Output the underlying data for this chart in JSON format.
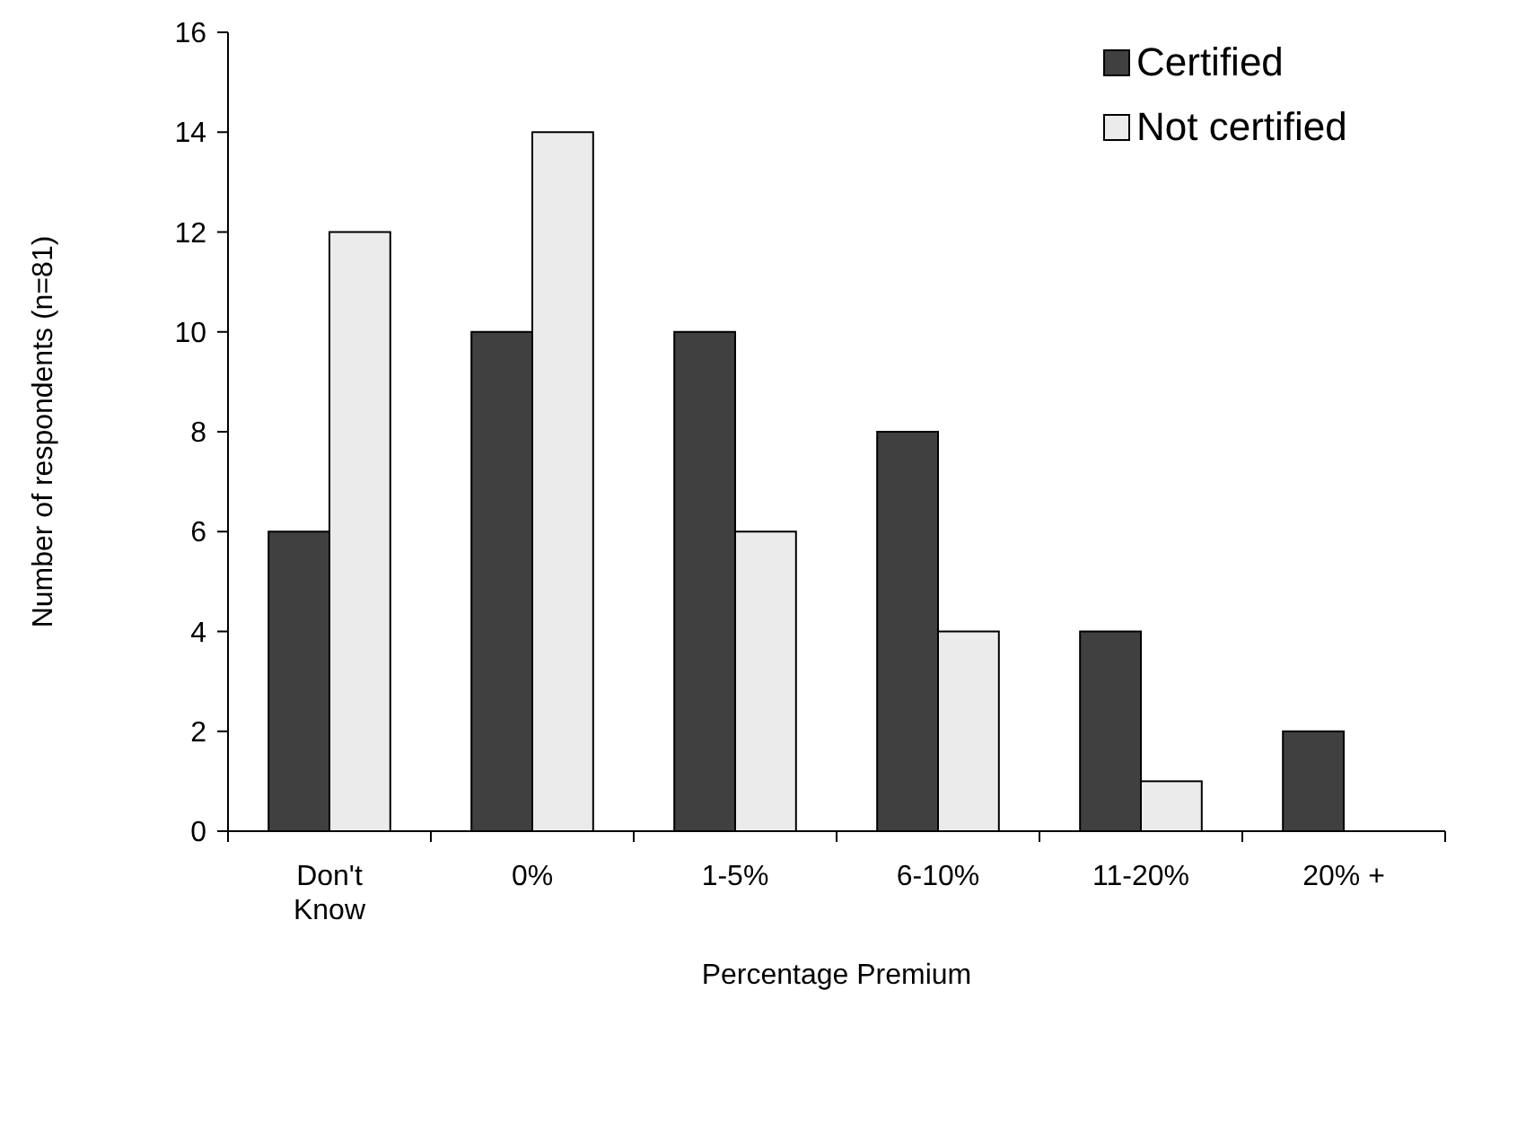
{
  "chart_data": {
    "type": "bar",
    "xlabel": "Percentage Premium",
    "ylabel": "Number of respondents (n=81)",
    "categories": [
      "Don't Know",
      "0%",
      "1-5%",
      "6-10%",
      "11-20%",
      "20% +"
    ],
    "series": [
      {
        "name": "Certified",
        "color": "#404040",
        "values": [
          6,
          10,
          10,
          8,
          4,
          2
        ]
      },
      {
        "name": "Not certified",
        "color": "#ebebeb",
        "values": [
          12,
          14,
          6,
          4,
          1,
          0
        ]
      }
    ],
    "ylim": [
      0,
      16
    ],
    "yticks": [
      0,
      2,
      4,
      6,
      8,
      10,
      12,
      14,
      16
    ],
    "grid": false,
    "legend": "top right"
  }
}
